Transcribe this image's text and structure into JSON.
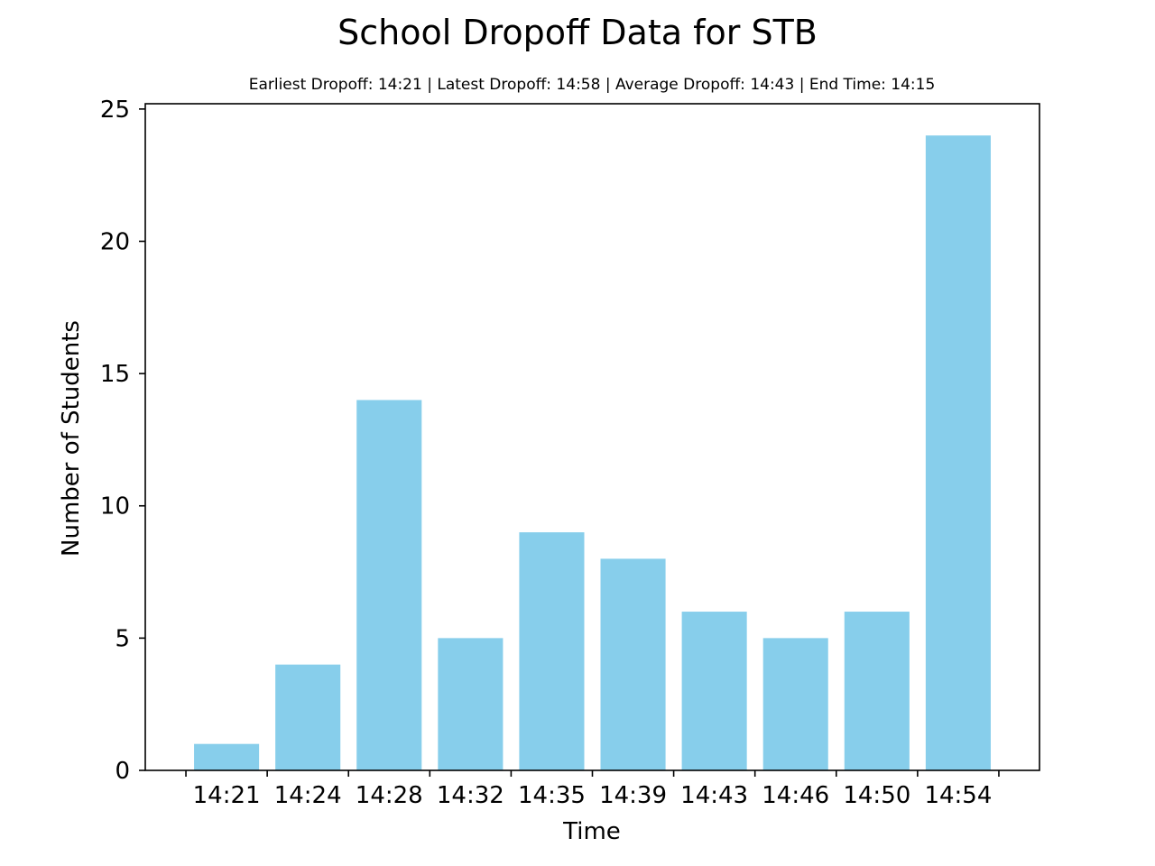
{
  "chart_data": {
    "type": "bar",
    "title": "School Dropoff Data for STB",
    "subtitle": "Earliest Dropoff: 14:21 | Latest Dropoff: 14:58 | Average Dropoff: 14:43 | End Time: 14:15",
    "xlabel": "Time",
    "ylabel": "Number of Students",
    "categories": [
      "14:21",
      "14:24",
      "14:28",
      "14:32",
      "14:35",
      "14:39",
      "14:43",
      "14:46",
      "14:50",
      "14:54"
    ],
    "values": [
      1,
      4,
      14,
      5,
      9,
      8,
      6,
      5,
      6,
      24
    ],
    "ylim": [
      0,
      25.2
    ],
    "yticks": [
      "0",
      "5",
      "10",
      "15",
      "20",
      "25"
    ],
    "bar_color": "#87CEEB",
    "grid": false,
    "legend": "none"
  }
}
